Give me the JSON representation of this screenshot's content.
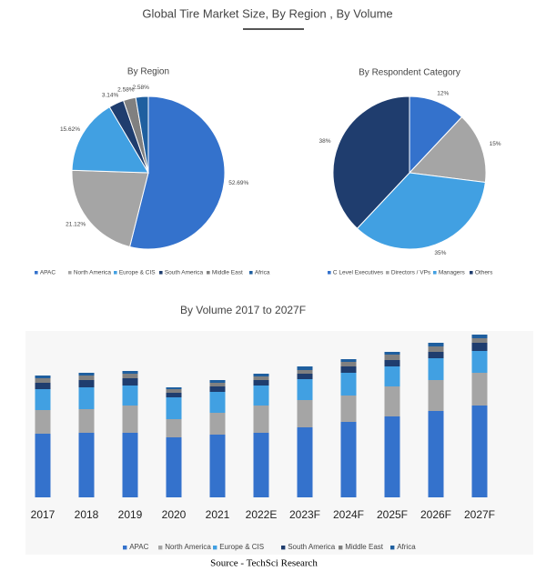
{
  "title": "Global Tire Market Size, By Region , By Volume",
  "source": "Source - TechSci Research",
  "chart_data": [
    {
      "type": "pie",
      "title": "By Region",
      "categories": [
        "APAC",
        "North America",
        "Europe & CIS",
        "South America",
        "Middle East",
        "Africa"
      ],
      "values": [
        52.69,
        21.12,
        15.62,
        3.14,
        2.58,
        2.58
      ],
      "value_labels": [
        "52.69%",
        "21.12%",
        "15.62%",
        "3.14%",
        "2.58%",
        "2.58%"
      ],
      "colors": [
        "#3472cc",
        "#a5a5a5",
        "#41a0e2",
        "#1f3d6e",
        "#808080",
        "#1f5f9f"
      ]
    },
    {
      "type": "pie",
      "title": "By Respondent Category",
      "categories": [
        "C Level Executives",
        "Directors / VPs",
        "Managers",
        "Others"
      ],
      "values": [
        12,
        15,
        35,
        38
      ],
      "value_labels": [
        "12%",
        "15%",
        "35%",
        "38%"
      ],
      "colors": [
        "#3472cc",
        "#a5a5a5",
        "#41a0e2",
        "#1f3d6e"
      ]
    },
    {
      "type": "bar",
      "stacked": true,
      "title": "By Volume 2017 to 2027F",
      "categories": [
        "2017",
        "2018",
        "2019",
        "2020",
        "2021",
        "2022E",
        "2023F",
        "2024F",
        "2025F",
        "2026F",
        "2027F"
      ],
      "series": [
        {
          "name": "APAC",
          "color": "#3472cc",
          "values": [
            70,
            71,
            71,
            66,
            69,
            71,
            77,
            83,
            89,
            95,
            101
          ]
        },
        {
          "name": "North America",
          "color": "#a5a5a5",
          "values": [
            26,
            26,
            30,
            20,
            24,
            30,
            30,
            29,
            33,
            34,
            36
          ]
        },
        {
          "name": "Europe & CIS",
          "color": "#41a0e2",
          "values": [
            23,
            24,
            22,
            24,
            23,
            22,
            23,
            25,
            22,
            24,
            24
          ]
        },
        {
          "name": "South America",
          "color": "#1f3d6e",
          "values": [
            7,
            8,
            8,
            5,
            6,
            6,
            6,
            7,
            7,
            7,
            9
          ]
        },
        {
          "name": "Middle East",
          "color": "#808080",
          "values": [
            5,
            5,
            5,
            4,
            4,
            4,
            4,
            5,
            6,
            6,
            5
          ]
        },
        {
          "name": "Africa",
          "color": "#1f5f9f",
          "values": [
            3,
            3,
            3,
            2,
            3,
            3,
            4,
            3,
            3,
            4,
            4
          ]
        }
      ]
    }
  ]
}
